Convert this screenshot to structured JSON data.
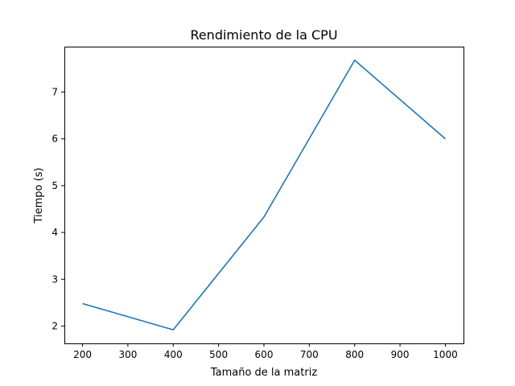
{
  "chart_data": {
    "type": "line",
    "title": "Rendimiento de la CPU",
    "xlabel": "Tamaño de la matriz",
    "ylabel": "Tiempo (s)",
    "x": [
      200,
      400,
      600,
      800,
      1000
    ],
    "series": [
      {
        "values": [
          2.48,
          1.92,
          4.33,
          7.68,
          6.0
        ],
        "color": "#1f77b4"
      }
    ],
    "xlim": [
      160,
      1040
    ],
    "ylim": [
      1.63,
      7.97
    ],
    "xticks": [
      200,
      300,
      400,
      500,
      600,
      700,
      800,
      900,
      1000
    ],
    "yticks": [
      2,
      3,
      4,
      5,
      6,
      7
    ],
    "grid": false,
    "legend": "none"
  }
}
